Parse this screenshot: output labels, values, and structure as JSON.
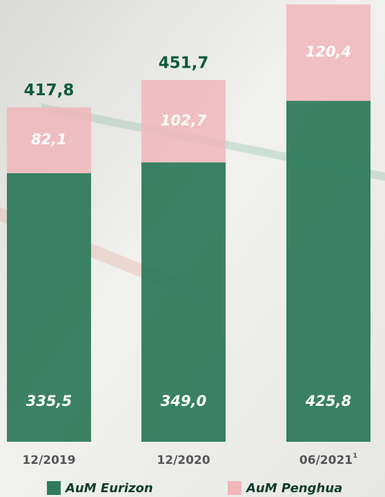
{
  "chart_data": {
    "type": "stacked-bar",
    "categories": [
      "12/2019",
      "12/2020",
      "06/2021"
    ],
    "category_note_marks": [
      null,
      null,
      "1"
    ],
    "series": [
      {
        "name": "AuM Eurizon",
        "color": "#2f7a5d",
        "values": [
          335.5,
          349.0,
          425.8
        ],
        "value_labels": [
          "335,5",
          "349,0",
          "425,8"
        ]
      },
      {
        "name": "AuM Penghua",
        "color": "#f0b6ba",
        "values": [
          82.1,
          102.7,
          120.4
        ],
        "value_labels": [
          "82,1",
          "102,7",
          "120,4"
        ]
      }
    ],
    "totals": {
      "values": [
        417.8,
        451.7,
        null
      ],
      "value_labels": [
        "417,8",
        "451,7",
        null
      ]
    },
    "ylim": [
      0,
      550
    ]
  }
}
